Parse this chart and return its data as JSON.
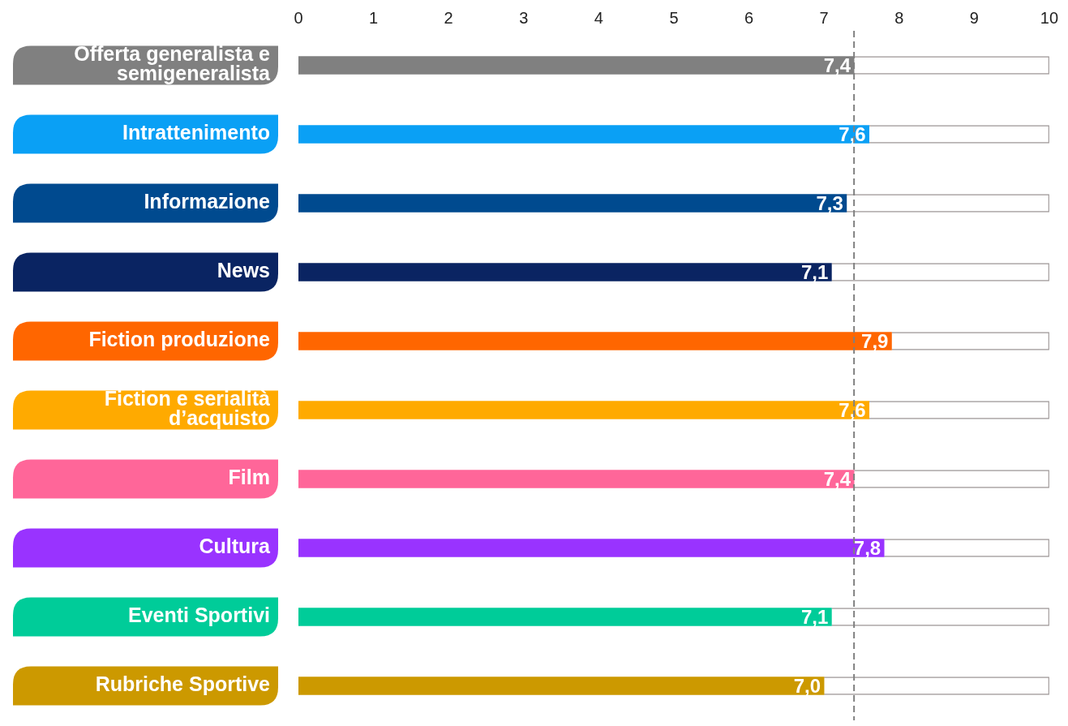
{
  "chart_data": {
    "type": "bar",
    "orientation": "horizontal",
    "categories": [
      "Offerta generalista e semigeneralista",
      "Intrattenimento",
      "Informazione",
      "News",
      "Fiction produzione",
      "Fiction e serialità d’acquisto",
      "Film",
      "Cultura",
      "Eventi Sportivi",
      "Rubriche Sportive"
    ],
    "series": [
      {
        "values": [
          7.4,
          7.6,
          7.3,
          7.1,
          7.9,
          7.6,
          7.4,
          7.8,
          7.1,
          7.0
        ],
        "value_labels": [
          "7,4",
          "7,6",
          "7,3",
          "7,1",
          "7,9",
          "7,6",
          "7,4",
          "7,8",
          "7,1",
          "7,0"
        ],
        "colors": [
          "#808080",
          "#0aa0f5",
          "#004a8f",
          "#0a2462",
          "#ff6600",
          "#ffaa00",
          "#ff6699",
          "#9933ff",
          "#00cc99",
          "#cc9900"
        ]
      },
      {
        "values": [
          2.6,
          2.4,
          2.7,
          2.9,
          2.1,
          2.4,
          2.6,
          2.2,
          2.9,
          3.0
        ],
        "color": "#ffffff"
      }
    ],
    "stacked": true,
    "xlim": [
      0,
      10
    ],
    "xticks": [
      0,
      1,
      2,
      3,
      4,
      5,
      6,
      7,
      8,
      9,
      10
    ],
    "ref_lines": [
      {
        "axis": "x",
        "value": 7.4,
        "color": "#808080",
        "line_style": "dashed"
      }
    ],
    "grid": false,
    "legend": false
  }
}
